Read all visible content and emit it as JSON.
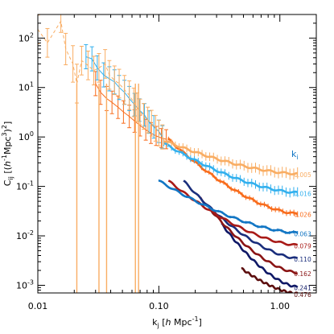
{
  "chart_data": {
    "type": "line",
    "title": "",
    "xlabel_parts": {
      "k": "k",
      "sub": "j",
      "rest": " [",
      "h": "h",
      "unit": " Mpc",
      "sup": "-1",
      "close": "]"
    },
    "ylabel_parts": {
      "c": "C",
      "sub": "ij",
      "rest": " [(",
      "h": "h",
      "sup1": "-1",
      "unit": "Mpc",
      "sup2": "3",
      "close": ")",
      "sup3": "2",
      "end": "]"
    },
    "xscale": "log",
    "yscale": "log",
    "xlim": [
      0.01,
      2.0
    ],
    "ylim": [
      0.0007,
      300
    ],
    "x_ticks": [
      {
        "v": 0.01,
        "label": "0.01"
      },
      {
        "v": 0.1,
        "label": "0.10"
      },
      {
        "v": 1.0,
        "label": "1.00"
      }
    ],
    "y_ticks": [
      {
        "v": 0.001,
        "base": "10",
        "exp": "-3"
      },
      {
        "v": 0.01,
        "base": "10",
        "exp": "-2"
      },
      {
        "v": 0.1,
        "base": "10",
        "exp": "-1"
      },
      {
        "v": 1,
        "base": "10",
        "exp": "0"
      },
      {
        "v": 10,
        "base": "10",
        "exp": "1"
      },
      {
        "v": 100,
        "base": "10",
        "exp": "2"
      }
    ],
    "legend": {
      "title": "k",
      "title_sub": "i",
      "placement": "right"
    },
    "series": [
      {
        "label": "0.005",
        "color": "#f9ad63",
        "kmin": 0.11,
        "c_start": 0.85,
        "c_end": 0.18,
        "errors": true,
        "err_frac": 0.3,
        "noisy": {
          "x": [
            0.01,
            0.012,
            0.0155,
            0.017,
            0.0195,
            0.021,
            0.023,
            0.026,
            0.029,
            0.032,
            0.036,
            0.039,
            0.043,
            0.047,
            0.052,
            0.057,
            0.062,
            0.066,
            0.07,
            0.075,
            0.081,
            0.087,
            0.094,
            0.1,
            0.107
          ],
          "y": [
            150,
            80,
            220,
            60,
            30,
            12,
            35,
            28,
            22,
            25,
            30,
            18,
            14,
            12,
            9,
            7,
            5,
            4,
            3.2,
            2.6,
            2.2,
            1.9,
            1.5,
            1.2,
            1.0
          ],
          "err": [
            0.5,
            0.5,
            0.3,
            0.6,
            0.8,
            0.9,
            0.5,
            0.5,
            0.5,
            0.5,
            0.5,
            0.5,
            0.5,
            0.5,
            0.5,
            0.5,
            0.5,
            0.5,
            0.4,
            0.4,
            0.4,
            0.4,
            0.4,
            0.4,
            0.35
          ]
        },
        "drops": [
          0.021,
          0.032,
          0.037,
          0.064,
          0.068
        ]
      },
      {
        "label": "0.016",
        "color": "#32b0ee",
        "kmin": 0.11,
        "c_start": 0.75,
        "c_end": 0.075,
        "errors": true,
        "err_frac": 0.25,
        "noisy": {
          "x": [
            0.025,
            0.028,
            0.031,
            0.035,
            0.039,
            0.043,
            0.047,
            0.052,
            0.057,
            0.063,
            0.069,
            0.076,
            0.083,
            0.091,
            0.1,
            0.107
          ],
          "y": [
            42,
            38,
            25,
            18,
            15,
            13,
            10,
            8,
            6,
            4.5,
            3.5,
            2.8,
            2.0,
            1.6,
            1.3,
            1.0
          ],
          "err": [
            0.35,
            0.35,
            0.35,
            0.35,
            0.35,
            0.35,
            0.35,
            0.35,
            0.35,
            0.3,
            0.3,
            0.3,
            0.3,
            0.3,
            0.3,
            0.3
          ]
        }
      },
      {
        "label": "0.026",
        "color": "#f86c1c",
        "kmin": 0.12,
        "c_start": 0.9,
        "c_end": 0.028,
        "errors": true,
        "err_frac": 0.15,
        "noisy": {
          "x": [
            0.03,
            0.033,
            0.037,
            0.041,
            0.046,
            0.051,
            0.057,
            0.063,
            0.07,
            0.078,
            0.086,
            0.095,
            0.105,
            0.115
          ],
          "y": [
            12,
            8,
            6,
            5,
            4,
            3.2,
            2.6,
            2.1,
            1.7,
            1.4,
            1.2,
            1.05,
            0.95,
            0.9
          ],
          "err": [
            0.35,
            0.35,
            0.35,
            0.3,
            0.3,
            0.3,
            0.3,
            0.3,
            0.25,
            0.25,
            0.25,
            0.2,
            0.2,
            0.2
          ]
        }
      },
      {
        "label": "0.063",
        "color": "#1276c4",
        "kmin": 0.1,
        "c_start": 0.13,
        "c_end": 0.0115,
        "errors": true,
        "err_frac": 0.08
      },
      {
        "label": "0.079",
        "color": "#a81a17",
        "kmin": 0.12,
        "c_start": 0.13,
        "c_end": 0.0065
      },
      {
        "label": "0.110",
        "color": "#1a2e7c",
        "kmin": 0.16,
        "c_start": 0.13,
        "c_end": 0.0035
      },
      {
        "label": "0.162",
        "color": "#8a1414",
        "kmin": 0.22,
        "c_start": 0.06,
        "c_end": 0.0018
      },
      {
        "label": "0.241",
        "color": "#0f1866",
        "kmin": 0.33,
        "c_start": 0.0175,
        "c_end": 0.00093
      },
      {
        "label": "0.476",
        "color": "#5c0e0e",
        "kmin": 0.48,
        "c_start": 0.0022,
        "c_end": 0.00068
      }
    ]
  }
}
